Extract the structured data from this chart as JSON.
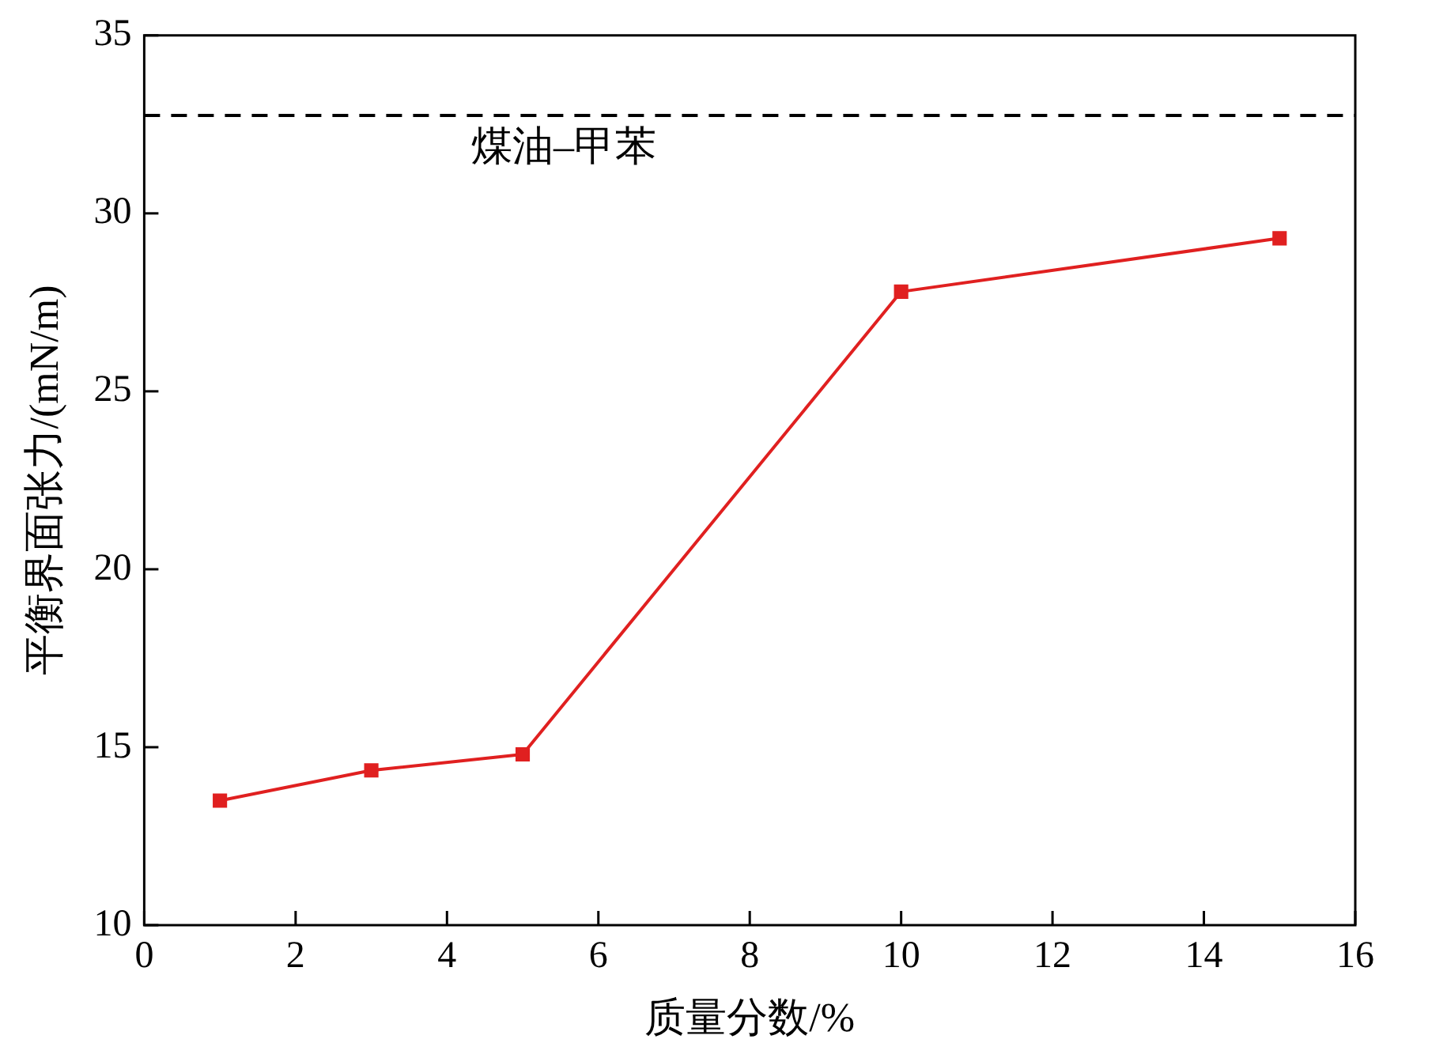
{
  "chart_data": {
    "type": "line",
    "xlabel": "质量分数/%",
    "ylabel": "平衡界面张力/(mN/m)",
    "x": [
      1,
      3,
      5,
      10,
      15
    ],
    "series": [
      {
        "color": "#e02020",
        "values": [
          13.5,
          14.35,
          14.8,
          27.8,
          29.3
        ]
      }
    ],
    "xlim": [
      0,
      16
    ],
    "xticks": [
      0,
      2,
      4,
      6,
      8,
      10,
      12,
      14,
      16
    ],
    "ylim": [
      10,
      35
    ],
    "yticks": [
      10,
      15,
      20,
      25,
      30,
      35
    ],
    "ref_lines": [
      {
        "axis": "y",
        "value": 32.75,
        "label": "煤油–甲苯",
        "color": "#000000",
        "line_style": "dashed"
      }
    ],
    "grid": false,
    "legend": false,
    "marker": "square",
    "line_style": "solid"
  }
}
